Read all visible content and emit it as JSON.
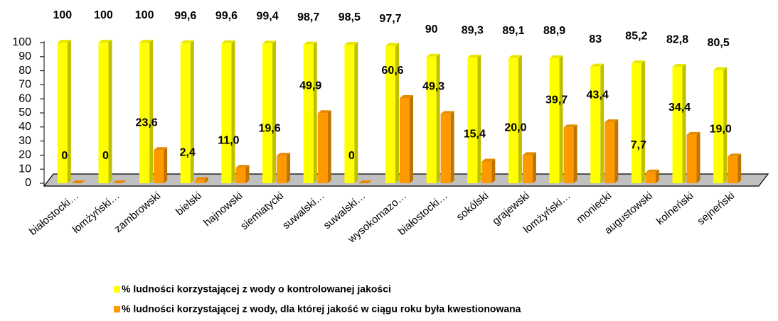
{
  "chart_data": {
    "type": "bar3d",
    "categories": [
      "białostocki…",
      "łomżyński…",
      "zambrowski",
      "bielski",
      "hajnowski",
      "siemiatycki",
      "suwalski…",
      "suwalski…",
      "wysokomazo…",
      "białostocki…",
      "sokólski",
      "grajewski",
      "łomżyński…",
      "moniecki",
      "augustowski",
      "kolneński",
      "sejneński"
    ],
    "series": [
      {
        "name": "% ludności korzystającej z wody o kontrolowanej jakości",
        "color": "#ffff00",
        "values": [
          100,
          100,
          100,
          99.6,
          99.6,
          99.4,
          98.7,
          98.5,
          97.7,
          90,
          89.3,
          89.1,
          88.9,
          83,
          85.2,
          82.8,
          80.5
        ],
        "value_labels": [
          "100",
          "100",
          "100",
          "99,6",
          "99,6",
          "99,4",
          "98,7",
          "98,5",
          "97,7",
          "90",
          "89,3",
          "89,1",
          "88,9",
          "83",
          "85,2",
          "82,8",
          "80,5"
        ]
      },
      {
        "name": "% ludności korzystającej z wody, dla której jakość w ciągu roku była kwestionowana",
        "color": "#ff9900",
        "values": [
          0,
          0,
          23.6,
          2.4,
          11.0,
          19.6,
          49.9,
          0,
          60.6,
          49.3,
          15.4,
          20.0,
          39.7,
          43.4,
          7.7,
          34.4,
          19.0
        ],
        "value_labels": [
          "0",
          "0",
          "23,6",
          "2,4",
          "11,0",
          "19,6",
          "49,9",
          "0",
          "60,6",
          "49,3",
          "15,4",
          "20,0",
          "39,7",
          "43,4",
          "7,7",
          "34,4",
          "19,0"
        ]
      }
    ],
    "ylim": [
      0,
      100
    ],
    "yticks": [
      0,
      10,
      20,
      30,
      40,
      50,
      60,
      70,
      80,
      90,
      100
    ],
    "legend": "bottom"
  }
}
